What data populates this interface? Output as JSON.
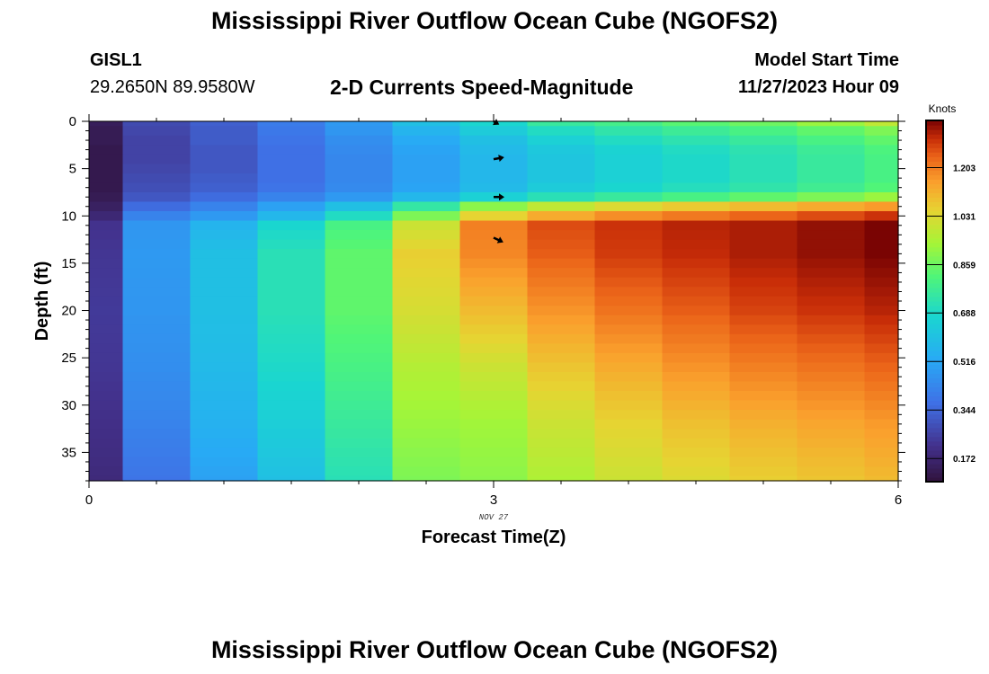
{
  "header": {
    "title": "Mississippi River Outflow Ocean Cube (NGOFS2)",
    "station": "GISL1",
    "coordinates": "29.2650N  89.9580W",
    "subtitle": "2-D Currents Speed-Magnitude",
    "model_start_label": "Model Start Time",
    "model_start_value": "11/27/2023 Hour 09"
  },
  "footer": {
    "title": "Mississippi River Outflow Ocean Cube (NGOFS2)"
  },
  "chart_data": {
    "type": "heatmap",
    "xlabel": "Forecast Time(Z)",
    "ylabel": "Depth (ft)",
    "xlim": [
      0,
      6
    ],
    "ylim": [
      38,
      0
    ],
    "xticks": [
      0,
      3,
      6
    ],
    "xtick_labels": [
      "0",
      "3",
      "6"
    ],
    "date_label": "NOV 27",
    "date_label_x": 3,
    "yticks": [
      0,
      5,
      10,
      15,
      20,
      25,
      30,
      35
    ],
    "colorbar": {
      "label": "Knots",
      "ticks": [
        0.172,
        0.344,
        0.516,
        0.688,
        0.859,
        1.031,
        1.203
      ],
      "range": [
        0.09,
        1.37
      ]
    },
    "time_columns": [
      0,
      0.5,
      1,
      1.5,
      2,
      2.5,
      3,
      3.5,
      4,
      4.5,
      5,
      5.5,
      6
    ],
    "layer_depths": [
      0,
      1,
      2,
      3,
      4,
      5,
      6,
      7,
      8,
      9,
      10,
      11,
      12,
      13,
      14,
      15,
      16,
      17,
      18,
      19,
      20,
      21,
      22,
      23,
      24,
      25,
      26,
      27,
      28,
      29,
      30,
      31,
      32,
      33,
      34,
      35,
      36,
      37,
      38
    ],
    "profiles": {
      "surface_depths": [
        0,
        1,
        2,
        3,
        4,
        5,
        6,
        7,
        8,
        9,
        10
      ],
      "surface": [
        [
          0.14,
          0.13,
          0.13,
          0.12,
          0.12,
          0.12,
          0.12,
          0.12,
          0.13,
          0.15,
          0.18
        ],
        [
          0.28,
          0.27,
          0.26,
          0.26,
          0.26,
          0.27,
          0.28,
          0.29,
          0.31,
          0.36,
          0.42
        ],
        [
          0.33,
          0.32,
          0.32,
          0.31,
          0.31,
          0.31,
          0.32,
          0.33,
          0.36,
          0.42,
          0.48
        ],
        [
          0.4,
          0.39,
          0.38,
          0.37,
          0.37,
          0.37,
          0.37,
          0.38,
          0.42,
          0.5,
          0.57
        ],
        [
          0.48,
          0.47,
          0.45,
          0.44,
          0.43,
          0.43,
          0.43,
          0.44,
          0.48,
          0.6,
          0.7
        ],
        [
          0.6,
          0.56,
          0.53,
          0.51,
          0.5,
          0.5,
          0.5,
          0.51,
          0.57,
          0.75,
          0.88
        ],
        [
          0.68,
          0.64,
          0.6,
          0.58,
          0.57,
          0.57,
          0.57,
          0.58,
          0.66,
          0.9,
          1.05
        ],
        [
          0.76,
          0.7,
          0.66,
          0.63,
          0.62,
          0.62,
          0.62,
          0.64,
          0.72,
          0.98,
          1.13
        ],
        [
          0.79,
          0.74,
          0.7,
          0.67,
          0.66,
          0.66,
          0.66,
          0.68,
          0.76,
          1.03,
          1.18
        ],
        [
          0.83,
          0.77,
          0.73,
          0.7,
          0.69,
          0.69,
          0.69,
          0.71,
          0.8,
          1.07,
          1.21
        ],
        [
          0.86,
          0.8,
          0.76,
          0.73,
          0.72,
          0.72,
          0.72,
          0.74,
          0.84,
          1.1,
          1.24
        ],
        [
          0.92,
          0.84,
          0.8,
          0.77,
          0.76,
          0.76,
          0.76,
          0.78,
          0.88,
          1.13,
          1.27
        ],
        [
          0.98,
          0.88,
          0.84,
          0.81,
          0.8,
          0.8,
          0.8,
          0.82,
          0.92,
          1.16,
          1.3
        ]
      ],
      "deep_depths": [
        11,
        14,
        20,
        26,
        32,
        38
      ],
      "deep": [
        [
          0.22,
          0.23,
          0.24,
          0.23,
          0.21,
          0.19
        ],
        [
          0.47,
          0.48,
          0.47,
          0.45,
          0.42,
          0.38
        ],
        [
          0.56,
          0.6,
          0.6,
          0.58,
          0.55,
          0.5
        ],
        [
          0.68,
          0.72,
          0.72,
          0.69,
          0.65,
          0.6
        ],
        [
          0.8,
          0.84,
          0.84,
          0.8,
          0.76,
          0.72
        ],
        [
          1.0,
          1.06,
          1.02,
          0.96,
          0.92,
          0.88
        ],
        [
          1.2,
          1.19,
          1.1,
          1.0,
          0.93,
          0.9
        ],
        [
          1.27,
          1.25,
          1.17,
          1.08,
          1.0,
          0.95
        ],
        [
          1.3,
          1.29,
          1.22,
          1.13,
          1.05,
          1.0
        ],
        [
          1.32,
          1.31,
          1.25,
          1.17,
          1.09,
          1.03
        ],
        [
          1.33,
          1.33,
          1.28,
          1.2,
          1.12,
          1.06
        ],
        [
          1.35,
          1.35,
          1.3,
          1.22,
          1.14,
          1.08
        ],
        [
          1.37,
          1.37,
          1.32,
          1.24,
          1.16,
          1.1
        ]
      ]
    },
    "vectors": [
      {
        "x": 3,
        "depth": 0,
        "direction_deg": 30,
        "length": 0.6
      },
      {
        "x": 3,
        "depth": 4,
        "direction_deg": -10,
        "length": 1
      },
      {
        "x": 3,
        "depth": 8,
        "direction_deg": 0,
        "length": 1
      },
      {
        "x": 3,
        "depth": 12.3,
        "direction_deg": 25,
        "length": 1
      }
    ]
  }
}
